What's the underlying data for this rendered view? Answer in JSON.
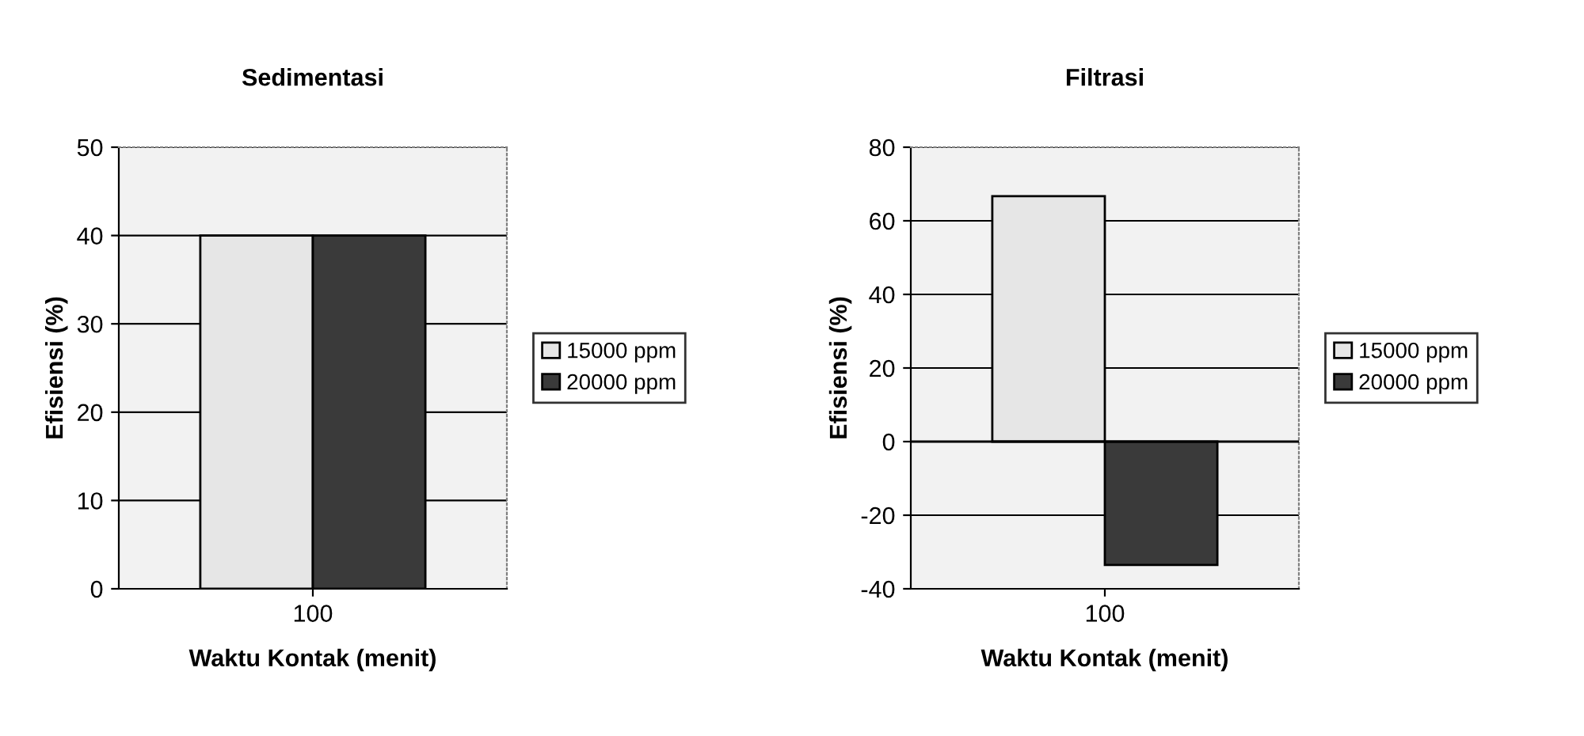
{
  "chart_data": [
    {
      "type": "bar",
      "title": "Sedimentasi",
      "xlabel": "Waktu Kontak (menit)",
      "ylabel": "Efisiensi (%)",
      "categories": [
        "100"
      ],
      "series": [
        {
          "name": "15000 ppm",
          "color": "#e6e6e6",
          "values": [
            40
          ]
        },
        {
          "name": "20000 ppm",
          "color": "#3a3a3a",
          "values": [
            40
          ]
        }
      ],
      "ylim": [
        0,
        50
      ],
      "yticks": [
        0,
        10,
        20,
        30,
        40,
        50
      ],
      "grid": "y",
      "legend": "right"
    },
    {
      "type": "bar",
      "title": "Filtrasi",
      "xlabel": "Waktu Kontak (menit)",
      "ylabel": "Efisiensi (%)",
      "categories": [
        "100"
      ],
      "series": [
        {
          "name": "15000 ppm",
          "color": "#e6e6e6",
          "values": [
            66.7
          ]
        },
        {
          "name": "20000 ppm",
          "color": "#3a3a3a",
          "values": [
            -33.5
          ]
        }
      ],
      "ylim": [
        -40,
        80
      ],
      "yticks": [
        -40,
        -20,
        0,
        20,
        40,
        60,
        80
      ],
      "grid": "y",
      "legend": "right"
    }
  ]
}
